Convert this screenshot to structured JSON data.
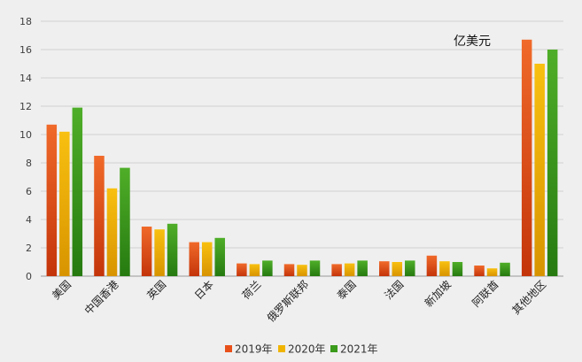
{
  "chart_data": {
    "type": "bar",
    "unit_annotation": "亿美元",
    "categories": [
      "美国",
      "中国香港",
      "英国",
      "日本",
      "荷兰",
      "俄罗斯联邦",
      "泰国",
      "法国",
      "新加坡",
      "阿联酋",
      "其他地区"
    ],
    "series": [
      {
        "name": "2019年",
        "color": "#e8501a",
        "values": [
          10.7,
          8.5,
          3.5,
          2.4,
          0.9,
          0.85,
          0.85,
          1.05,
          1.45,
          0.75,
          16.7
        ]
      },
      {
        "name": "2020年",
        "color": "#f0b400",
        "values": [
          10.2,
          6.2,
          3.3,
          2.4,
          0.85,
          0.8,
          0.9,
          1.0,
          1.05,
          0.55,
          15.0
        ]
      },
      {
        "name": "2021年",
        "color": "#3a9a1a",
        "values": [
          11.9,
          7.65,
          3.7,
          2.7,
          1.1,
          1.1,
          1.1,
          1.1,
          1.0,
          0.95,
          16.0
        ]
      }
    ],
    "y_ticks": [
      "0",
      "2",
      "4",
      "6",
      "8",
      "10",
      "12",
      "14",
      "16",
      "18"
    ],
    "ylim": [
      0,
      18
    ],
    "grid": true,
    "legend_position": "bottom"
  }
}
